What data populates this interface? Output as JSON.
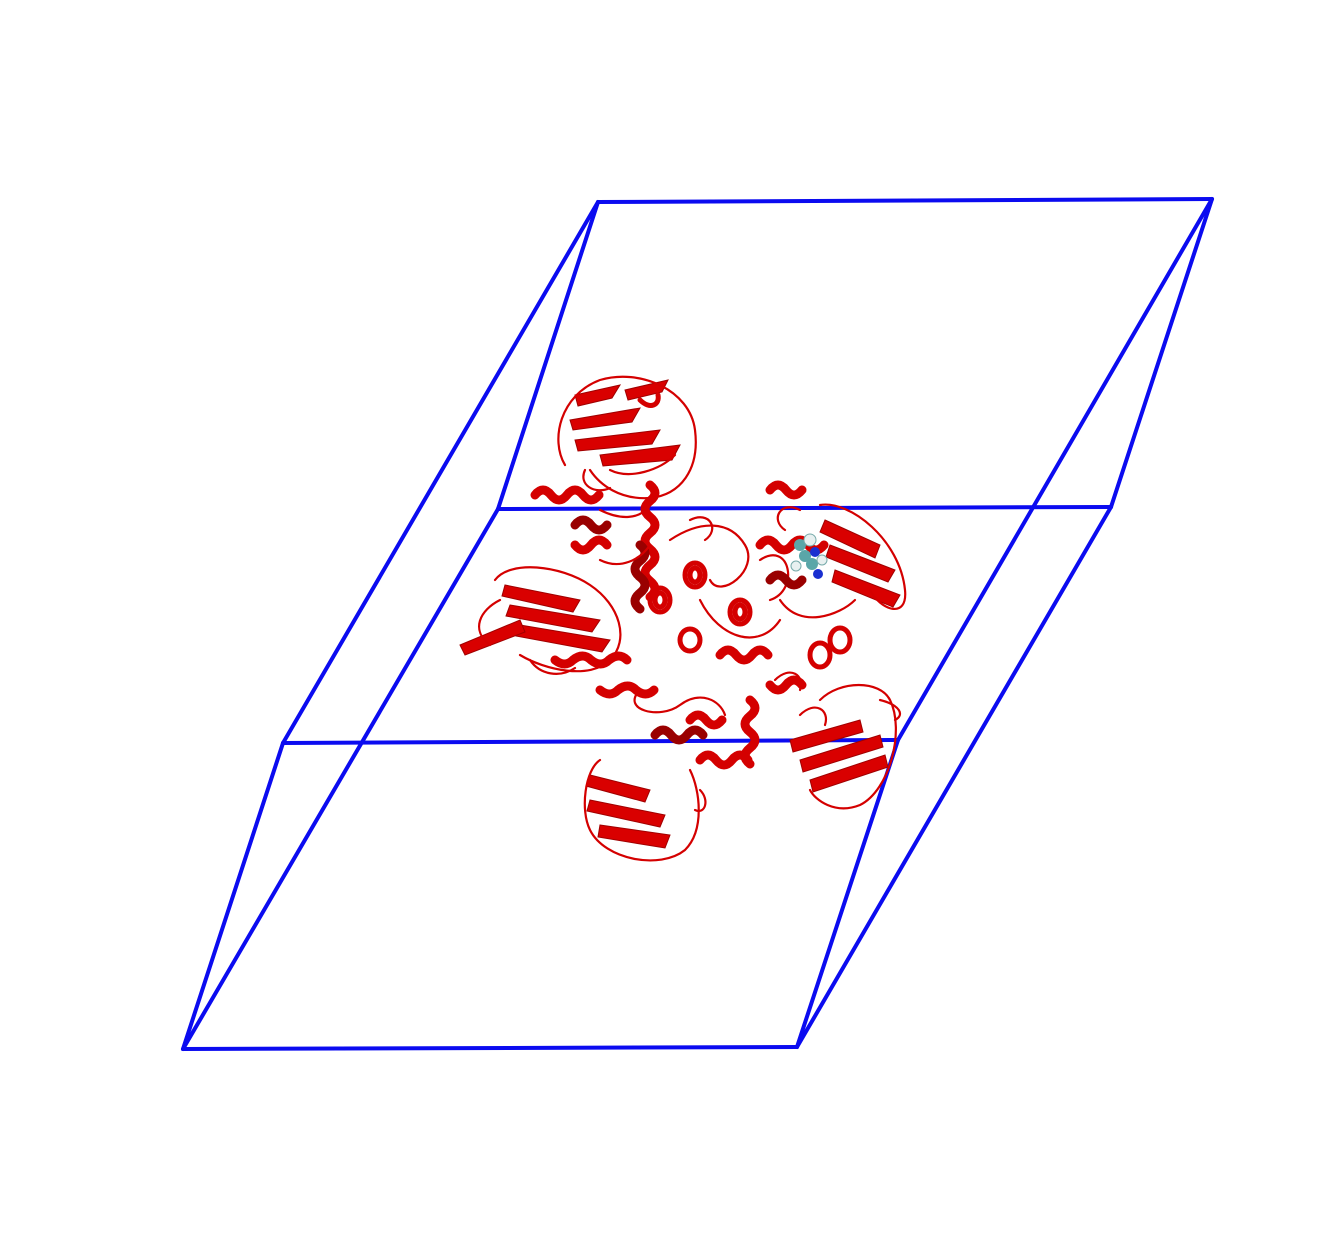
{
  "scene": {
    "background": "#ffffff",
    "box_color": "#0b0bf0",
    "protein_color": "#d40000",
    "ligand_colors": [
      "#5aa6a8",
      "#1a2fd0",
      "#e8f0f0"
    ],
    "representation": "cartoon",
    "ligand_representation": "vdw spheres"
  }
}
